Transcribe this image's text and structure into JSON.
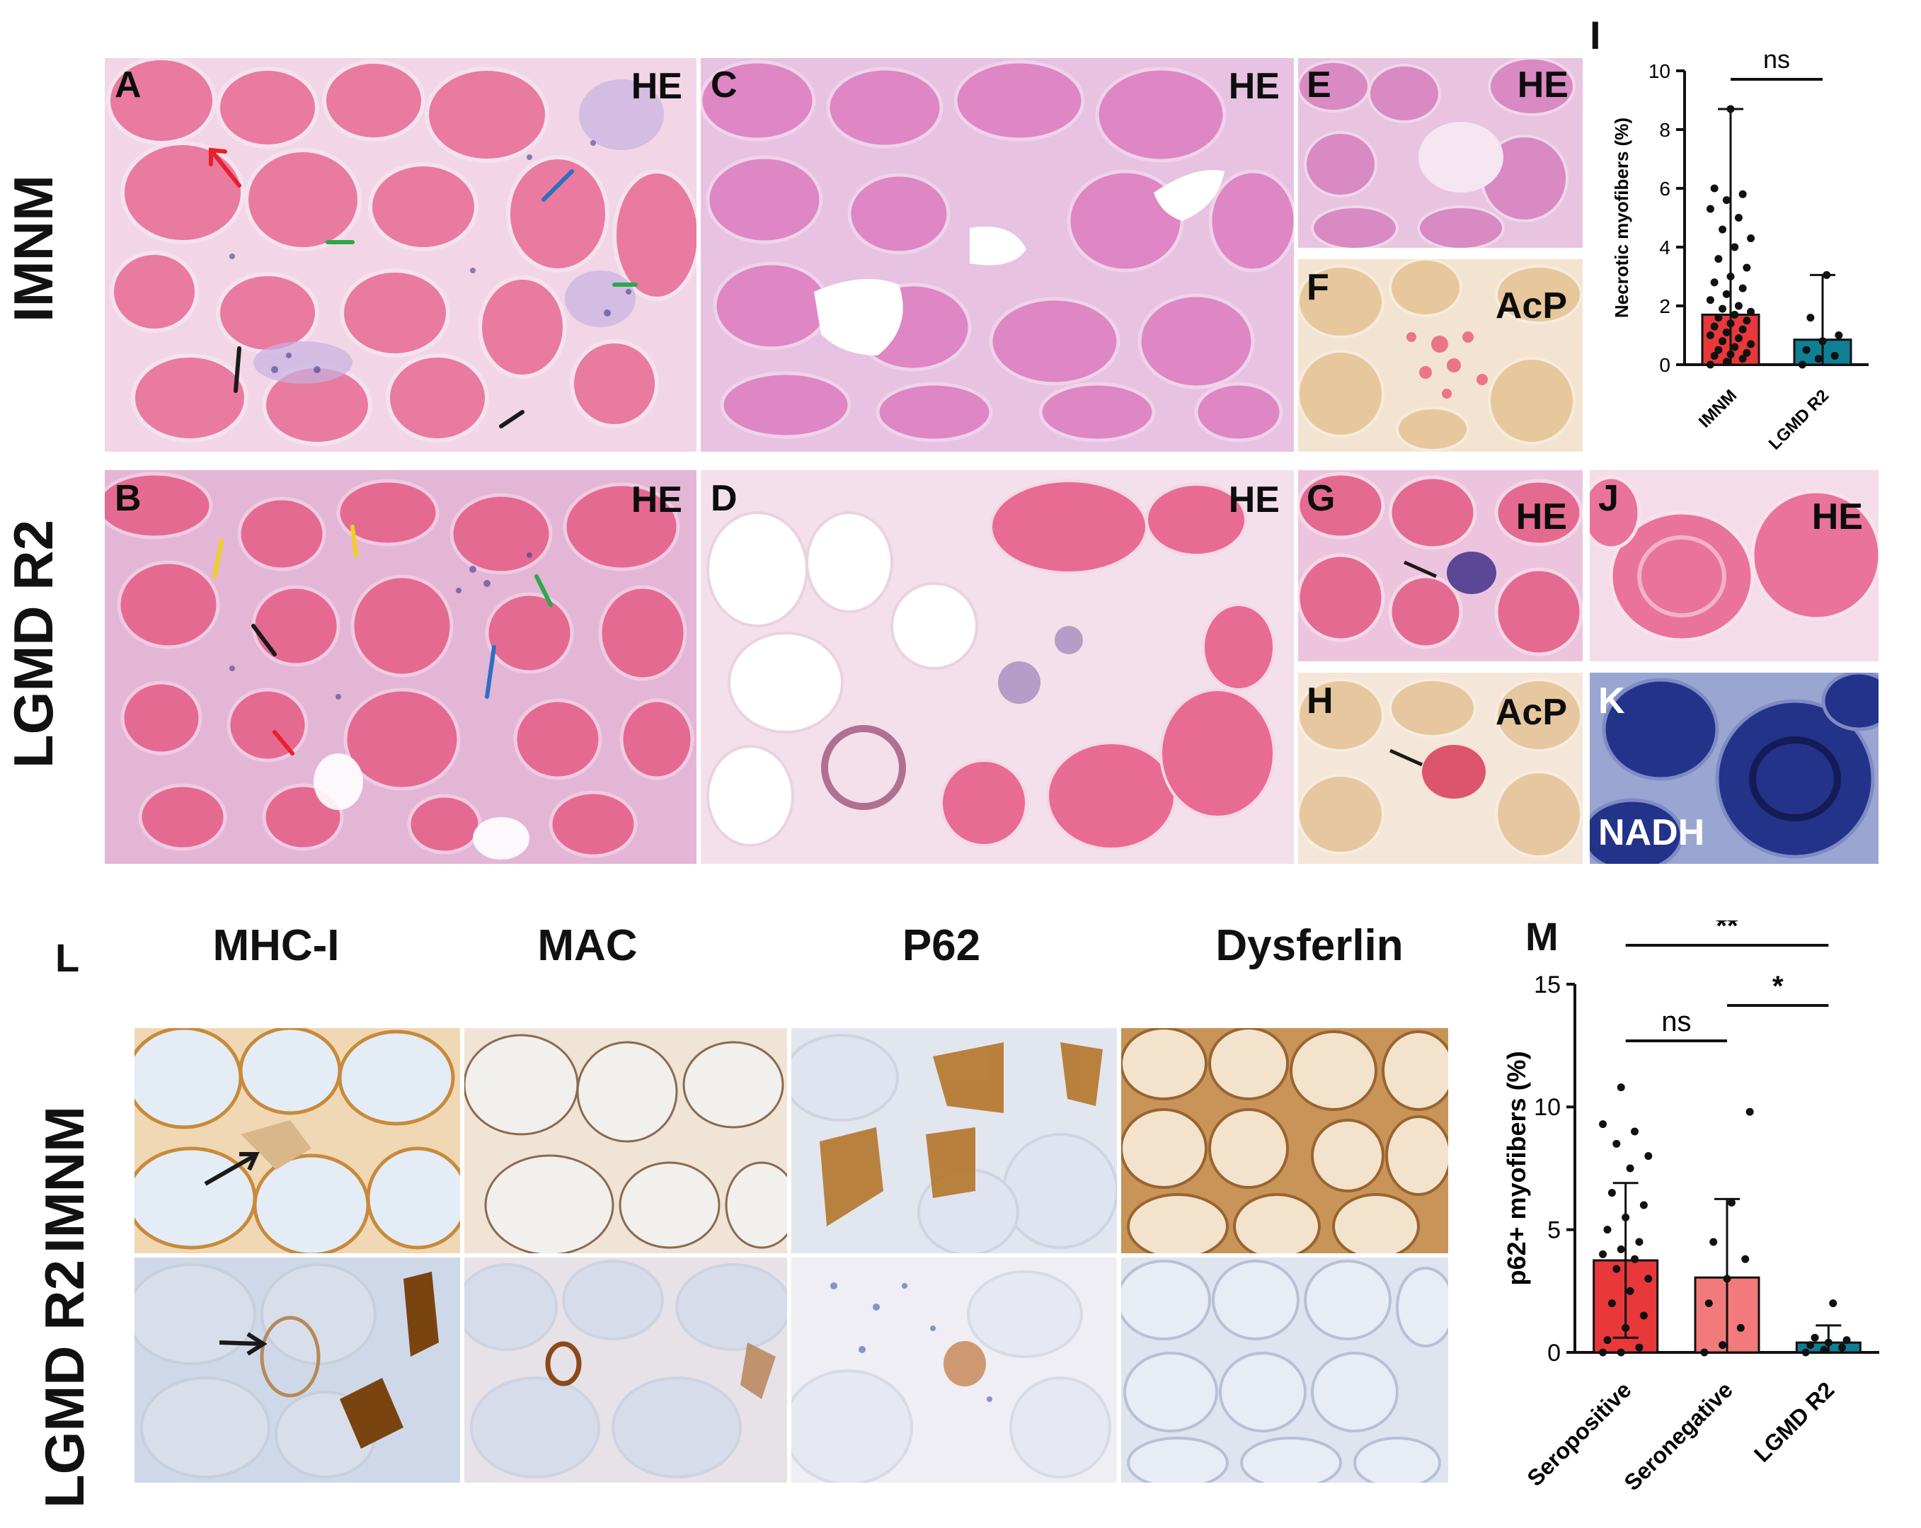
{
  "figure": {
    "row_labels": {
      "top": "IMNM",
      "bottom": "LGMD R2",
      "ihc_top": "IMNM",
      "ihc_bottom": "LGMD R2"
    },
    "panels": {
      "A": {
        "letter": "A",
        "stain": "HE"
      },
      "B": {
        "letter": "B",
        "stain": "HE"
      },
      "C": {
        "letter": "C",
        "stain": "HE"
      },
      "D": {
        "letter": "D",
        "stain": "HE"
      },
      "E": {
        "letter": "E",
        "stain": "HE"
      },
      "F": {
        "letter": "F",
        "stain": "AcP"
      },
      "G": {
        "letter": "G",
        "stain": "HE"
      },
      "H": {
        "letter": "H",
        "stain": "AcP"
      },
      "J": {
        "letter": "J",
        "stain": "HE"
      },
      "K": {
        "letter": "K",
        "stain": "NADH"
      }
    },
    "panel_L": {
      "letter": "L",
      "columns": [
        "MHC-I",
        "MAC",
        "P62",
        "Dysferlin"
      ]
    },
    "panel_I_letter": "I",
    "panel_M_letter": "M"
  },
  "colors": {
    "he_fiber": "#e8749a",
    "he_bg": "#f4d6e6",
    "acp_bg": "#e9cba4",
    "nadh": "#1f2f7a",
    "ihc_bg": "#d9e3f0",
    "ihc_brown": "#a8651c",
    "bar_red": "#e8383a",
    "bar_teal": "#0f7f94",
    "bar_pink": "#f27a7a"
  },
  "chart_data": [
    {
      "type": "bar",
      "panel": "I",
      "categories": [
        "IMNM",
        "LGMD R2"
      ],
      "values": [
        1.7,
        0.85
      ],
      "error_upper": [
        8.7,
        3.05
      ],
      "error_lower": [
        0,
        0
      ],
      "points": [
        [
          0,
          0.1,
          0.2,
          0.3,
          0.35,
          0.4,
          0.5,
          0.6,
          0.7,
          0.8,
          0.9,
          1.0,
          1.1,
          1.2,
          1.3,
          1.4,
          1.5,
          1.6,
          1.7,
          1.8,
          1.9,
          2.0,
          2.2,
          2.4,
          2.6,
          2.8,
          3.0,
          3.3,
          3.6,
          4.0,
          4.3,
          4.6,
          5.0,
          5.3,
          5.6,
          5.8,
          6.0,
          8.7
        ],
        [
          0,
          0.2,
          0.3,
          0.5,
          0.8,
          1.0,
          1.6,
          3.05
        ]
      ],
      "ylabel": "Necrotic myofibers (%)",
      "ylim": [
        0,
        10
      ],
      "yticks": [
        "0",
        "2",
        "4",
        "6",
        "8",
        "10"
      ],
      "significance": [
        {
          "label": "ns",
          "from": 0,
          "to": 1
        }
      ]
    },
    {
      "type": "bar",
      "panel": "M",
      "categories": [
        "Seropositive",
        "Seronegative",
        "LGMD R2"
      ],
      "values": [
        3.75,
        3.05,
        0.4
      ],
      "error_upper": [
        6.9,
        6.25,
        1.1
      ],
      "error_lower": [
        0.6,
        0,
        0
      ],
      "points": [
        [
          0,
          0,
          0.2,
          0.5,
          1.0,
          1.5,
          2.0,
          2.5,
          3.0,
          3.4,
          3.8,
          4.0,
          4.2,
          4.5,
          5.0,
          5.5,
          6.0,
          6.5,
          7.5,
          8.0,
          8.5,
          9.0,
          9.3,
          10.8
        ],
        [
          0,
          0.3,
          1.0,
          2.0,
          3.0,
          3.8,
          4.5,
          6.1,
          9.8
        ],
        [
          0,
          0.1,
          0.2,
          0.3,
          0.4,
          0.5,
          0.6,
          2.0
        ]
      ],
      "ylabel": "p62+ myofibers (%)",
      "ylim": [
        0,
        15
      ],
      "yticks": [
        "0",
        "5",
        "10",
        "15"
      ],
      "significance": [
        {
          "label": "**",
          "from": 0,
          "to": 2
        },
        {
          "label": "ns",
          "from": 0,
          "to": 1
        },
        {
          "label": "*",
          "from": 1,
          "to": 2
        }
      ]
    }
  ]
}
